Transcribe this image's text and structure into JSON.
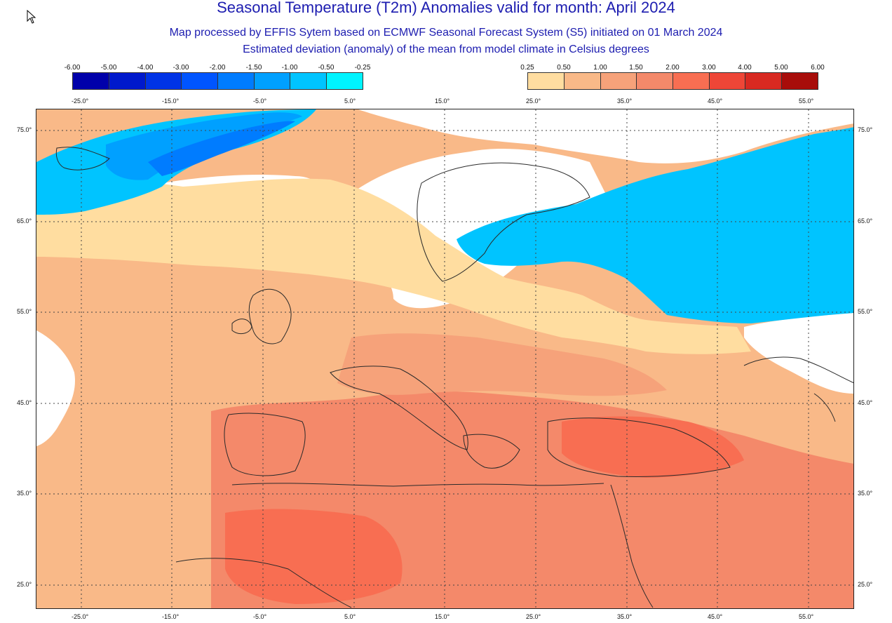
{
  "title": "Seasonal Temperature (T2m) Anomalies valid for month: April 2024",
  "subtitle_line1": "Map processed by EFFIS Sytem based on ECMWF Seasonal Forecast System (S5) initiated on 01 March 2024",
  "subtitle_line2": "Estimated deviation (anomaly) of the mean from model climate in Celsius degrees",
  "legend": {
    "negative": {
      "ticks": [
        "-6.00",
        "-5.00",
        "-4.00",
        "-3.00",
        "-2.00",
        "-1.50",
        "-1.00",
        "-0.50",
        "-0.25"
      ],
      "colors": [
        "#0000aa",
        "#0019cc",
        "#0033e6",
        "#0055ff",
        "#007cff",
        "#00a0ff",
        "#00c4ff",
        "#00f4ff"
      ]
    },
    "positive": {
      "ticks": [
        "0.25",
        "0.50",
        "1.00",
        "1.50",
        "2.00",
        "3.00",
        "4.00",
        "5.00",
        "6.00"
      ],
      "colors": [
        "#ffdda0",
        "#f9b988",
        "#f6a27a",
        "#f4896a",
        "#f86e52",
        "#ee4637",
        "#d82921",
        "#a80d0a"
      ]
    }
  },
  "axes": {
    "lon_labels": [
      "-25.0°",
      "-15.0°",
      "-5.0°",
      "5.0°",
      "15.0°",
      "25.0°",
      "35.0°",
      "45.0°",
      "55.0°"
    ],
    "lat_labels": [
      "75.0°",
      "65.0°",
      "55.0°",
      "45.0°",
      "35.0°",
      "25.0°"
    ]
  },
  "map": {
    "colors": {
      "white": "#ffffff",
      "light_peach": "#ffdda0",
      "peach": "#f9b988",
      "salmon": "#f6a27a",
      "coral": "#f4896a",
      "tomato": "#f86e52",
      "light_blue": "#00c4ff",
      "sky_blue": "#00a0ff",
      "azure": "#007cff",
      "blue": "#0055ff"
    }
  },
  "icons": {
    "cursor": "arrow-cursor-icon"
  }
}
